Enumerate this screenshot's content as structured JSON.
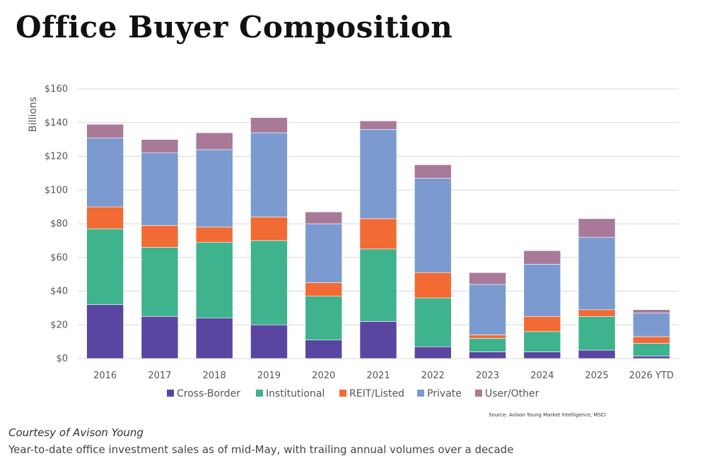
{
  "title": "Office Buyer Composition",
  "caption": {
    "credit": "Courtesy of Avison Young",
    "description": "Year-to-date office investment sales as of mid-May, with trailing annual volumes over a decade"
  },
  "chart_data": {
    "type": "bar",
    "stacked": true,
    "ylabel": "Billions",
    "ylim": [
      0,
      160
    ],
    "yticks": [
      "$0",
      "$20",
      "$40",
      "$60",
      "$80",
      "$100",
      "$120",
      "$140",
      "$160"
    ],
    "grid": true,
    "legend_position": "bottom",
    "source": "Source: Avison Young Market Intelligence, MSCI",
    "categories": [
      "2016",
      "2017",
      "2018",
      "2019",
      "2020",
      "2021",
      "2022",
      "2023",
      "2024",
      "2025",
      "2026 YTD"
    ],
    "series": [
      {
        "name": "Cross-Border",
        "color": "#5a46a0",
        "values": [
          32,
          25,
          24,
          20,
          11,
          22,
          7,
          4,
          4,
          5,
          1.5
        ]
      },
      {
        "name": "Institutional",
        "color": "#3fb28e",
        "values": [
          45,
          41,
          45,
          50,
          26,
          43,
          29,
          8,
          12,
          20,
          7.5
        ]
      },
      {
        "name": "REIT/Listed",
        "color": "#f26b35",
        "values": [
          13,
          13,
          9,
          14,
          8,
          18,
          15,
          2,
          9,
          4,
          4
        ]
      },
      {
        "name": "Private",
        "color": "#7b9bd0",
        "values": [
          41,
          43,
          46,
          50,
          35,
          53,
          56,
          30,
          31,
          43,
          14
        ]
      },
      {
        "name": "User/Other",
        "color": "#a87a98",
        "values": [
          8,
          8,
          10,
          9,
          7,
          5,
          8,
          7,
          8,
          11,
          2
        ]
      }
    ]
  }
}
